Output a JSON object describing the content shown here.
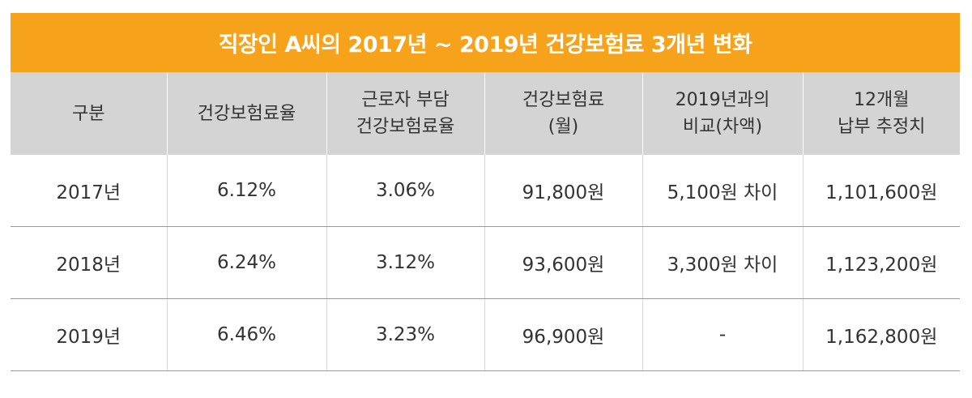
{
  "title": "직장인 A씨의 2017년 ~ 2019년 건강보험료 3개년 변화",
  "header": [
    {
      "line1": "구분",
      "line2": ""
    },
    {
      "line1": "건강보험료율",
      "line2": ""
    },
    {
      "line1": "근로자 부담",
      "line2": "건강보험료율"
    },
    {
      "line1": "건강보험료",
      "line2": "(월)"
    },
    {
      "line1": "2019년과의",
      "line2": "비교(차액)"
    },
    {
      "line1": "12개월",
      "line2": "납부 추정치"
    }
  ],
  "rows": [
    {
      "year": "2017년",
      "rate": "6.12%",
      "worker_rate": "3.06%",
      "premium": "91,800원",
      "diff": "5,100원 차이",
      "annual": "1,101,600원"
    },
    {
      "year": "2018년",
      "rate": "6.24%",
      "worker_rate": "3.12%",
      "premium": "93,600원",
      "diff": "3,300원 차이",
      "annual": "1,123,200원"
    },
    {
      "year": "2019년",
      "rate": "6.46%",
      "worker_rate": "3.23%",
      "premium": "96,900원",
      "diff": "-",
      "annual": "1,162,800원"
    }
  ],
  "colors": {
    "title_bg": "#f7a21b",
    "header_bg": "#d4d4d4",
    "text": "#333333"
  }
}
